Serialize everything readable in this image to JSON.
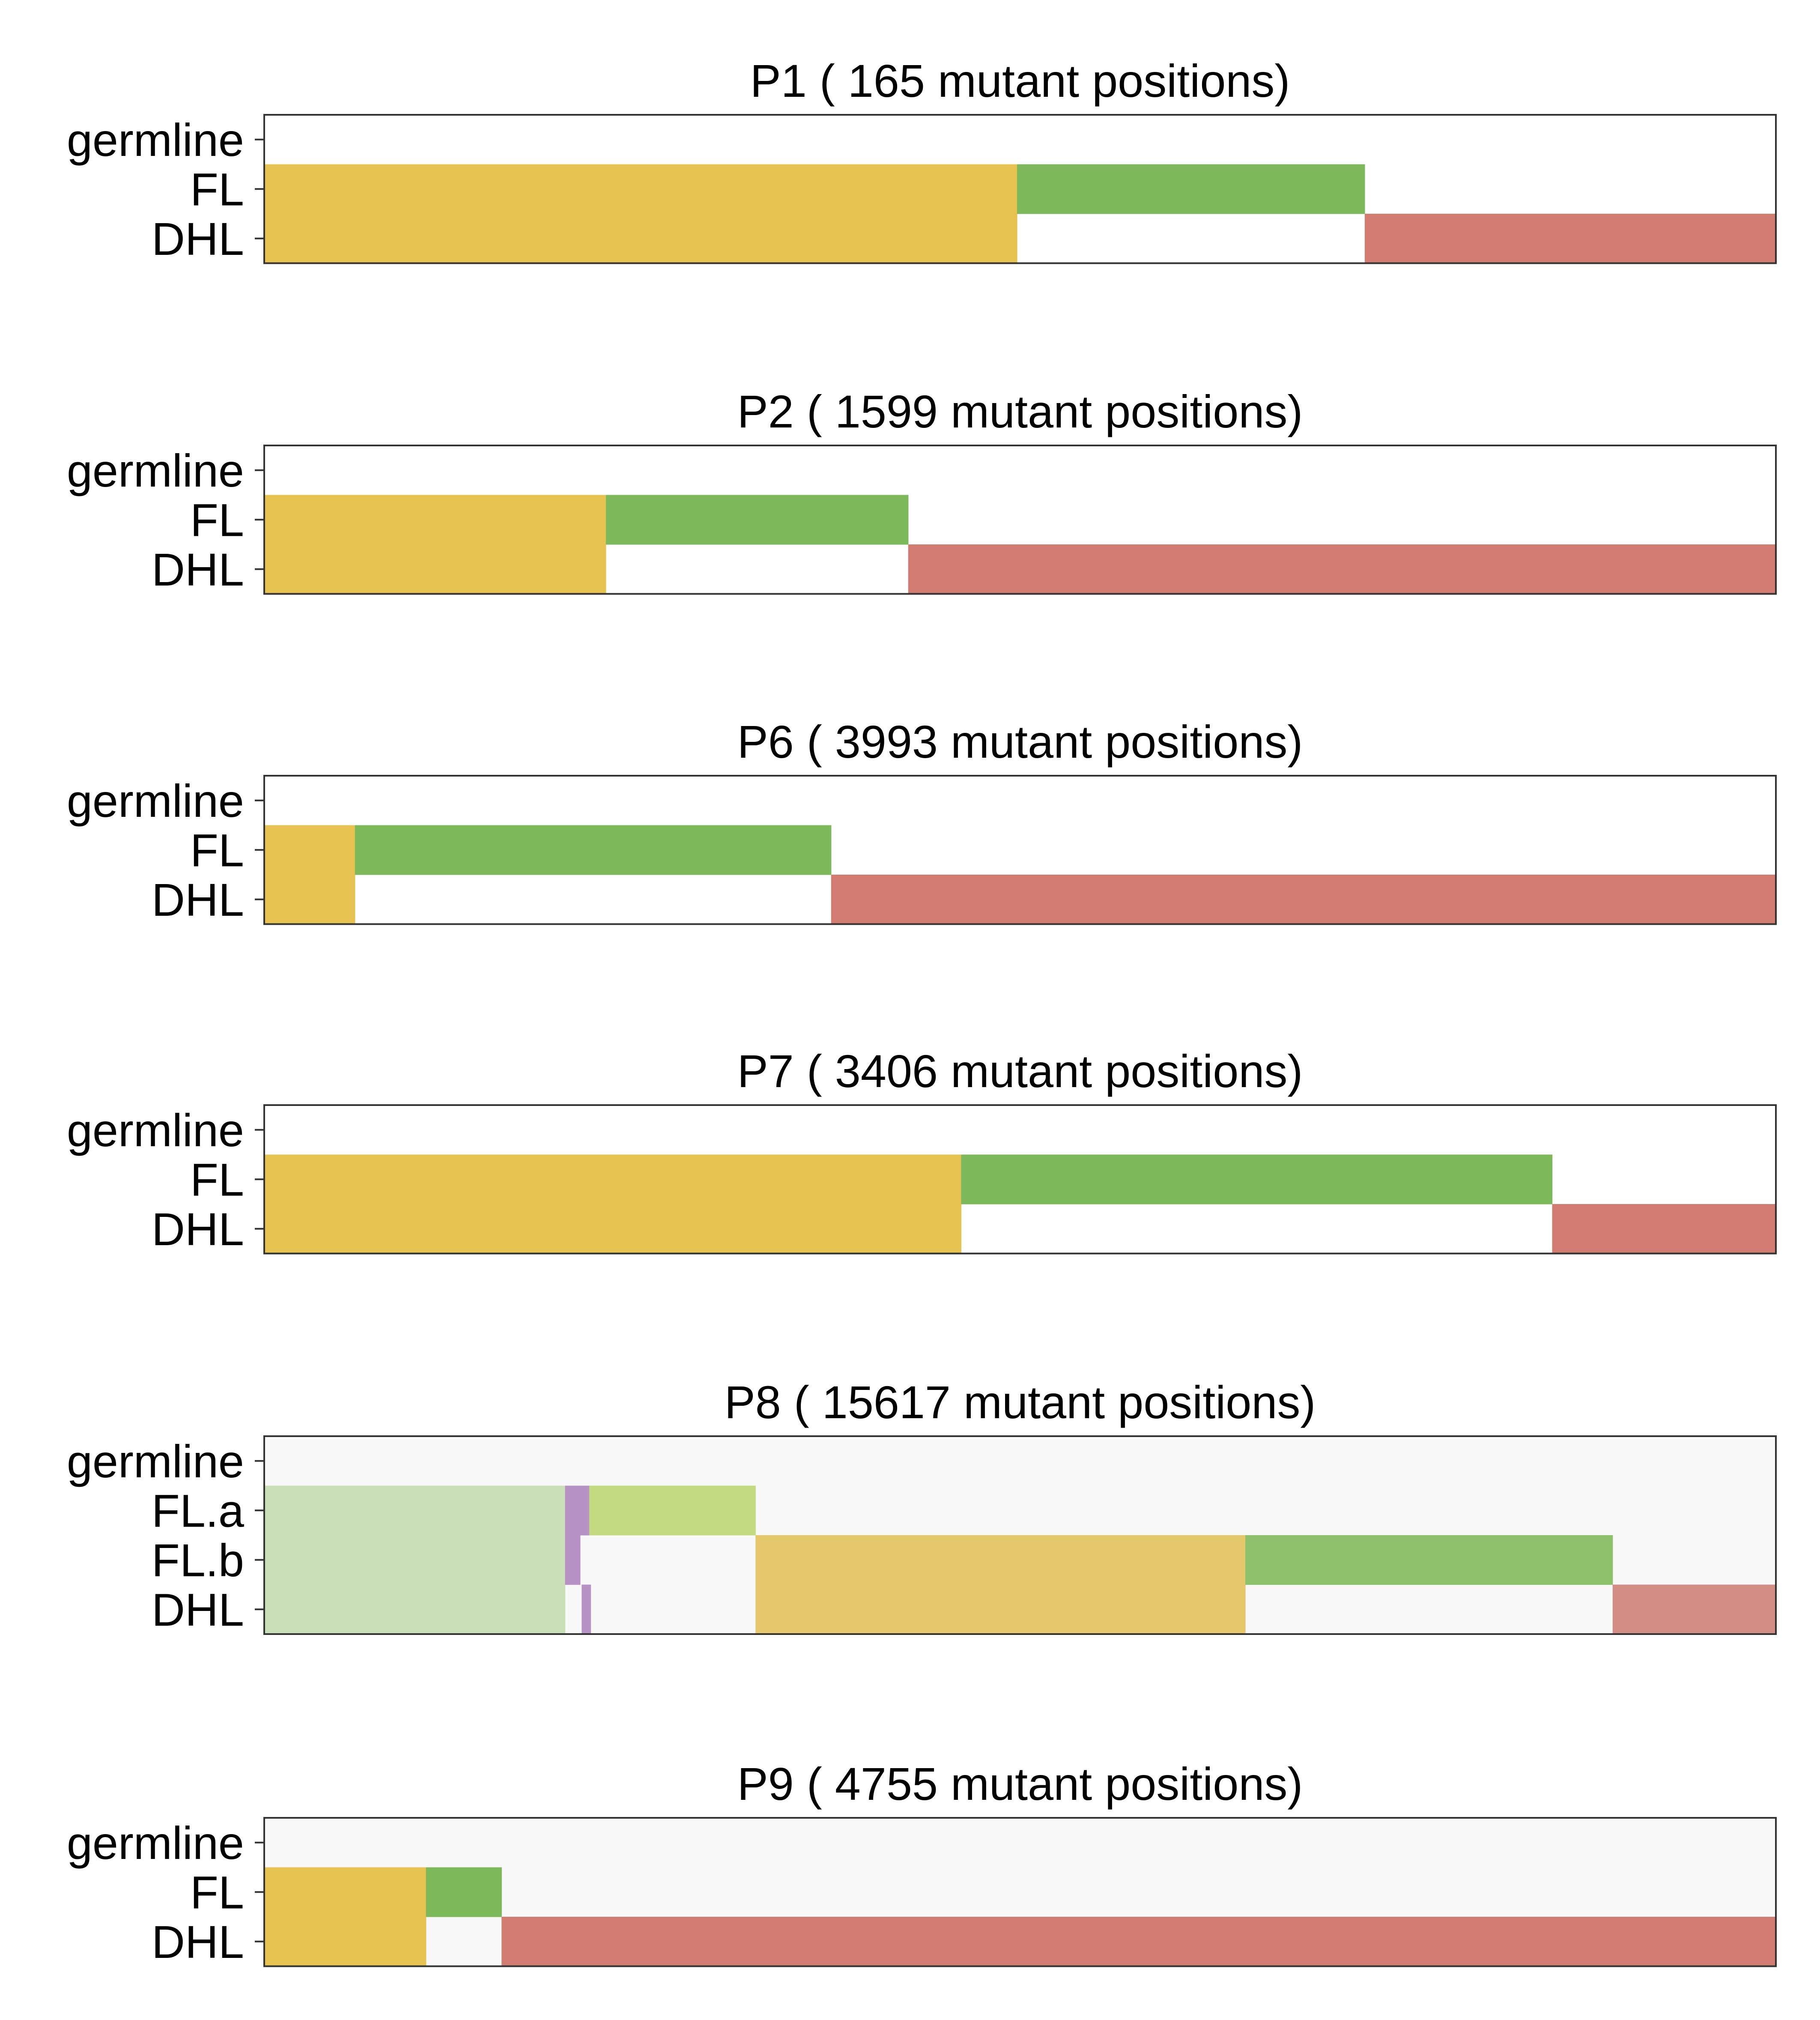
{
  "colors": {
    "yellow": "#E6C350",
    "green": "#7DB85A",
    "red": "#D27B71",
    "white": "#FFFFFF",
    "lightgreen": "#C9DFB8",
    "purple": "#B792C4",
    "yellowgreen": "#C4DA80",
    "lightgray": "#F8F8F8",
    "mutedyellow": "#E6C86C",
    "mutedgreen": "#8FC06C",
    "mutedred": "#D48D84",
    "frame": "#333333"
  },
  "chart_data": [
    {
      "type": "heatmap",
      "title": "P1 ( 165 mutant positions)",
      "rows": [
        "germline",
        "FL",
        "DHL"
      ],
      "background": "white",
      "segments": [
        {
          "row": "FL",
          "from": 0,
          "to": 0.498,
          "color": "yellow"
        },
        {
          "row": "DHL",
          "from": 0,
          "to": 0.498,
          "color": "yellow"
        },
        {
          "row": "FL",
          "from": 0.498,
          "to": 0.728,
          "color": "green"
        },
        {
          "row": "DHL",
          "from": 0.728,
          "to": 1,
          "color": "red"
        }
      ]
    },
    {
      "type": "heatmap",
      "title": "P2 ( 1599 mutant positions)",
      "rows": [
        "germline",
        "FL",
        "DHL"
      ],
      "background": "white",
      "segments": [
        {
          "row": "FL",
          "from": 0,
          "to": 0.226,
          "color": "yellow"
        },
        {
          "row": "DHL",
          "from": 0,
          "to": 0.226,
          "color": "yellow"
        },
        {
          "row": "FL",
          "from": 0.226,
          "to": 0.426,
          "color": "green"
        },
        {
          "row": "DHL",
          "from": 0.426,
          "to": 1,
          "color": "red"
        }
      ]
    },
    {
      "type": "heatmap",
      "title": "P6 ( 3993 mutant positions)",
      "rows": [
        "germline",
        "FL",
        "DHL"
      ],
      "background": "white",
      "segments": [
        {
          "row": "FL",
          "from": 0,
          "to": 0.06,
          "color": "yellow"
        },
        {
          "row": "DHL",
          "from": 0,
          "to": 0.06,
          "color": "yellow"
        },
        {
          "row": "FL",
          "from": 0.06,
          "to": 0.375,
          "color": "green"
        },
        {
          "row": "DHL",
          "from": 0.375,
          "to": 1,
          "color": "red"
        }
      ]
    },
    {
      "type": "heatmap",
      "title": "P7 ( 3406 mutant positions)",
      "rows": [
        "germline",
        "FL",
        "DHL"
      ],
      "background": "white",
      "segments": [
        {
          "row": "FL",
          "from": 0,
          "to": 0.461,
          "color": "yellow"
        },
        {
          "row": "DHL",
          "from": 0,
          "to": 0.461,
          "color": "yellow"
        },
        {
          "row": "FL",
          "from": 0.461,
          "to": 0.852,
          "color": "green"
        },
        {
          "row": "DHL",
          "from": 0.852,
          "to": 1,
          "color": "red"
        }
      ]
    },
    {
      "type": "heatmap",
      "title": "P8 ( 15617 mutant positions)",
      "rows": [
        "germline",
        "FL.a",
        "FL.b",
        "DHL"
      ],
      "background": "lightgray",
      "segments": [
        {
          "row": "FL.a",
          "from": 0,
          "to": 0.199,
          "color": "lightgreen"
        },
        {
          "row": "FL.b",
          "from": 0,
          "to": 0.199,
          "color": "lightgreen"
        },
        {
          "row": "DHL",
          "from": 0,
          "to": 0.199,
          "color": "lightgreen"
        },
        {
          "row": "FL.a",
          "from": 0.199,
          "to": 0.215,
          "color": "purple"
        },
        {
          "row": "FL.b",
          "from": 0.199,
          "to": 0.209,
          "color": "purple"
        },
        {
          "row": "DHL",
          "from": 0.21,
          "to": 0.216,
          "color": "purple"
        },
        {
          "row": "FL.a",
          "from": 0.215,
          "to": 0.325,
          "color": "yellowgreen"
        },
        {
          "row": "FL.b",
          "from": 0.325,
          "to": 0.649,
          "color": "mutedyellow"
        },
        {
          "row": "DHL",
          "from": 0.325,
          "to": 0.649,
          "color": "mutedyellow"
        },
        {
          "row": "FL.b",
          "from": 0.649,
          "to": 0.892,
          "color": "mutedgreen"
        },
        {
          "row": "DHL",
          "from": 0.892,
          "to": 1,
          "color": "mutedred"
        }
      ]
    },
    {
      "type": "heatmap",
      "title": "P9 ( 4755 mutant positions)",
      "rows": [
        "germline",
        "FL",
        "DHL"
      ],
      "background": "lightgray",
      "segments": [
        {
          "row": "FL",
          "from": 0,
          "to": 0.107,
          "color": "yellow"
        },
        {
          "row": "DHL",
          "from": 0,
          "to": 0.107,
          "color": "yellow"
        },
        {
          "row": "FL",
          "from": 0.107,
          "to": 0.157,
          "color": "green"
        },
        {
          "row": "DHL",
          "from": 0.157,
          "to": 1,
          "color": "red"
        }
      ]
    }
  ]
}
